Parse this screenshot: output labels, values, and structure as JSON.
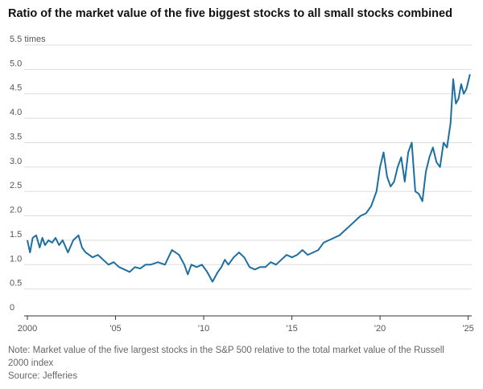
{
  "title": "Ratio of the market value of the five biggest stocks to all small stocks combined",
  "note": "Note: Market value of the five largest stocks in the S&P 500 relative to the total market value of the Russell 2000 index",
  "source": "Source: Jefferies",
  "colors": {
    "line": "#1d6fa0",
    "grid": "#dddddd",
    "axis": "#333333"
  },
  "chart_data": {
    "type": "line",
    "title": "Ratio of the market value of the five biggest stocks to all small stocks combined",
    "xlabel": "",
    "ylabel": "",
    "xlim": [
      2000,
      2025.2
    ],
    "ylim": [
      0,
      5.5
    ],
    "grid": true,
    "yticks": [
      0,
      0.5,
      1.0,
      1.5,
      2.0,
      2.5,
      3.0,
      3.5,
      4.0,
      4.5,
      5.0,
      5.5
    ],
    "ytick_labels": [
      "0",
      "0.5",
      "1.0",
      "1.5",
      "2.0",
      "2.5",
      "3.0",
      "3.5",
      "4.0",
      "4.5",
      "5.0",
      "5.5 times"
    ],
    "xticks": [
      2000,
      2005,
      2010,
      2015,
      2020,
      2025
    ],
    "xtick_labels": [
      "2000",
      "'05",
      "'10",
      "'15",
      "'20",
      "'25"
    ],
    "series": [
      {
        "x": [
          2000.0,
          2000.15,
          2000.3,
          2000.5,
          2000.7,
          2000.85,
          2001.0,
          2001.2,
          2001.4,
          2001.6,
          2001.8,
          2002.0,
          2002.3,
          2002.6,
          2002.9,
          2003.1,
          2003.3,
          2003.5,
          2003.7,
          2004.0,
          2004.3,
          2004.6,
          2004.9,
          2005.2,
          2005.5,
          2005.8,
          2006.1,
          2006.4,
          2006.7,
          2007.0,
          2007.4,
          2007.8,
          2008.2,
          2008.6,
          2008.9,
          2009.1,
          2009.3,
          2009.6,
          2009.9,
          2010.2,
          2010.5,
          2010.8,
          2011.0,
          2011.2,
          2011.4,
          2011.7,
          2012.0,
          2012.3,
          2012.6,
          2012.9,
          2013.2,
          2013.5,
          2013.8,
          2014.1,
          2014.4,
          2014.7,
          2015.0,
          2015.3,
          2015.6,
          2015.9,
          2016.2,
          2016.5,
          2016.8,
          2017.1,
          2017.4,
          2017.7,
          2018.0,
          2018.3,
          2018.6,
          2018.9,
          2019.2,
          2019.5,
          2019.8,
          2020.0,
          2020.2,
          2020.4,
          2020.6,
          2020.8,
          2021.0,
          2021.2,
          2021.4,
          2021.6,
          2021.8,
          2022.0,
          2022.2,
          2022.4,
          2022.6,
          2022.8,
          2023.0,
          2023.2,
          2023.4,
          2023.6,
          2023.8,
          2024.0,
          2024.15,
          2024.3,
          2024.45,
          2024.6,
          2024.75,
          2024.9,
          2025.1
        ],
        "y": [
          1.5,
          1.25,
          1.55,
          1.6,
          1.35,
          1.55,
          1.4,
          1.5,
          1.45,
          1.55,
          1.4,
          1.5,
          1.25,
          1.5,
          1.6,
          1.35,
          1.25,
          1.2,
          1.15,
          1.2,
          1.1,
          1.0,
          1.05,
          0.95,
          0.9,
          0.85,
          0.95,
          0.92,
          1.0,
          1.0,
          1.05,
          1.0,
          1.3,
          1.2,
          1.0,
          0.8,
          1.0,
          0.95,
          1.0,
          0.85,
          0.65,
          0.85,
          0.95,
          1.1,
          1.0,
          1.15,
          1.25,
          1.15,
          0.95,
          0.9,
          0.95,
          0.95,
          1.05,
          1.0,
          1.1,
          1.2,
          1.15,
          1.2,
          1.3,
          1.2,
          1.25,
          1.3,
          1.45,
          1.5,
          1.55,
          1.6,
          1.7,
          1.8,
          1.9,
          2.0,
          2.05,
          2.2,
          2.5,
          3.0,
          3.3,
          2.8,
          2.6,
          2.7,
          3.0,
          3.2,
          2.7,
          3.3,
          3.5,
          2.5,
          2.45,
          2.3,
          2.9,
          3.2,
          3.4,
          3.1,
          3.0,
          3.5,
          3.4,
          3.9,
          4.8,
          4.3,
          4.4,
          4.7,
          4.5,
          4.6,
          4.9
        ]
      }
    ]
  }
}
